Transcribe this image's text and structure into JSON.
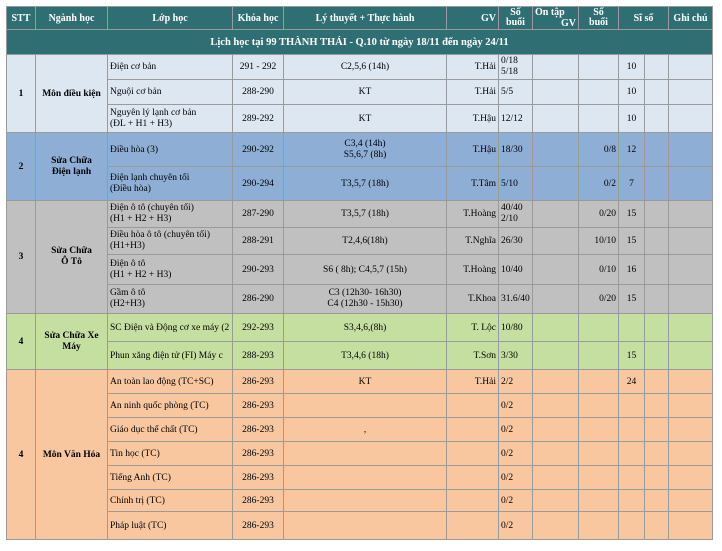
{
  "title": "Lịch học tại 99 THÀNH THÁI - Q.10 từ ngày 18/11 đến ngày 24/11",
  "headers": {
    "stt": "STT",
    "nganh": "Ngành học",
    "lop": "Lớp học",
    "khoa": "Khóa học",
    "lt": "Lý thuyết + Thực hành",
    "gv1": "GV",
    "sb1_a": "Số",
    "sb1_b": "buổi",
    "ontap": "Ôn tập",
    "gv2": "GV",
    "sb2_a": "Số",
    "sb2_b": "buổi",
    "siso": "Sĩ số",
    "ghichu": "Ghi chú"
  },
  "groups": {
    "g1": {
      "stt": "1",
      "name": "Môn điều kiện",
      "rows": [
        {
          "lop": "Điện cơ bản",
          "khoa": "291 - 292",
          "lt": "C2,5,6 (14h)",
          "gv": "T.Hải",
          "sb": "0/18",
          "sb_b": "5/18",
          "sb2": "",
          "siso": "10"
        },
        {
          "lop": "Nguội cơ bản",
          "khoa": "288-290",
          "lt": "KT",
          "gv": "T.Hải",
          "sb": "5/5",
          "sb2": "",
          "siso": "10"
        },
        {
          "lop": "Nguyên lý lạnh cơ bản",
          "lop_b": "(ĐL + H1 + H3)",
          "khoa": "289-292",
          "lt": "KT",
          "gv": "T.Hậu",
          "sb": "12/12",
          "sb2": "",
          "siso": "10"
        }
      ]
    },
    "g2": {
      "stt": "2",
      "name": "Sửa Chữa",
      "name_b": "Điện lạnh",
      "rows": [
        {
          "lop": "Điều hòa (3)",
          "khoa": "290-292",
          "lt": "C3,4 (14h)",
          "lt_b": "S5,6,7 (8h)",
          "gv": "T.Hậu",
          "sb": "18/30",
          "sb2": "0/8",
          "siso": "12"
        },
        {
          "lop": "Điện lạnh chuyên tối",
          "lop_b": "(Điều hòa)",
          "khoa": "290-294",
          "lt": "T3,5,7 (18h)",
          "gv": "T.Tâm",
          "sb": "5/10",
          "sb2": "0/2",
          "siso": "7"
        }
      ]
    },
    "g3": {
      "stt": "3",
      "name": "Sửa Chữa",
      "name_b": "Ô Tô",
      "rows": [
        {
          "lop": "Điện ô tô (chuyên tối)",
          "lop_b": "(H1 + H2 + H3)",
          "khoa": "287-290",
          "lt": "T3,5,7 (18h)",
          "gv": "T.Hoàng",
          "sb": "40/40",
          "sb_b": "2/10",
          "sb2": "0/20",
          "siso": "15"
        },
        {
          "lop": "Điều hòa ô tô (chuyên tối)",
          "lop_b": "(H1+H3)",
          "khoa": "288-291",
          "lt": "T2,4,6(18h)",
          "gv": "T.Nghĩa",
          "sb": "26/30",
          "sb2": "10/10",
          "siso": "15"
        },
        {
          "lop": "Điện ô tô",
          "lop_b": "(H1 + H2 + H3)",
          "khoa": "290-293",
          "lt": "S6 ( 8h); C4,5,7 (15h)",
          "gv": "T.Hoàng",
          "sb": "10/40",
          "sb2": "0/10",
          "siso": "16"
        },
        {
          "lop": "Gầm ô tô",
          "lop_b": "(H2+H3)",
          "khoa": "286-290",
          "lt": "C3 (12h30- 16h30)",
          "lt_b": "C4 (12h30 - 15h30)",
          "gv": "T.Khoa",
          "sb": "31.6/40",
          "sb2": "0/20",
          "siso": "15"
        }
      ]
    },
    "g4": {
      "stt": "4",
      "name": "Sửa Chữa Xe",
      "name_b": "Máy",
      "rows": [
        {
          "lop": "SC Điện và Động cơ xe máy (2",
          "khoa": "292-293",
          "lt": "S3,4,6,(8h)",
          "gv": "T. Lộc",
          "sb": "10/80",
          "sb2": "",
          "siso": ""
        },
        {
          "lop": "Phun xăng điện tử (FI)     Máy c",
          "khoa": "288-293",
          "lt": "T3,4,6 (18h)",
          "gv": "T.Sơn",
          "sb": "3/30",
          "sb2": "",
          "siso": "15"
        }
      ]
    },
    "g5": {
      "stt": "4",
      "name": "Môn Văn Hóa",
      "rows": [
        {
          "lop": "An toàn lao động (TC+SC)",
          "khoa": "286-293",
          "lt": "KT",
          "gv": "T.Hải",
          "sb": "2/2",
          "sb2": "",
          "siso": "24"
        },
        {
          "lop": "An ninh quốc phòng (TC)",
          "khoa": "286-293",
          "lt": "",
          "gv": "",
          "sb": "0/2",
          "sb2": "",
          "siso": ""
        },
        {
          "lop": "Giáo dục thể chất (TC)",
          "khoa": "286-293",
          "lt": ",",
          "gv": "",
          "sb": "0/2",
          "sb2": "",
          "siso": ""
        },
        {
          "lop": "Tin học (TC)",
          "khoa": "286-293",
          "lt": "",
          "gv": "",
          "sb": "0/2",
          "sb2": "",
          "siso": ""
        },
        {
          "lop": "Tiếng Anh (TC)",
          "khoa": "286-293",
          "lt": "",
          "gv": "",
          "sb": "0/2",
          "sb2": "",
          "siso": ""
        },
        {
          "lop": "Chính trị (TC)",
          "khoa": "286-293",
          "lt": "",
          "gv": "",
          "sb": "0/2",
          "sb2": "",
          "siso": ""
        },
        {
          "lop": "Pháp luật (TC)",
          "khoa": "286-293",
          "lt": "",
          "gv": "",
          "sb": "0/2",
          "sb2": "",
          "siso": ""
        }
      ]
    }
  }
}
